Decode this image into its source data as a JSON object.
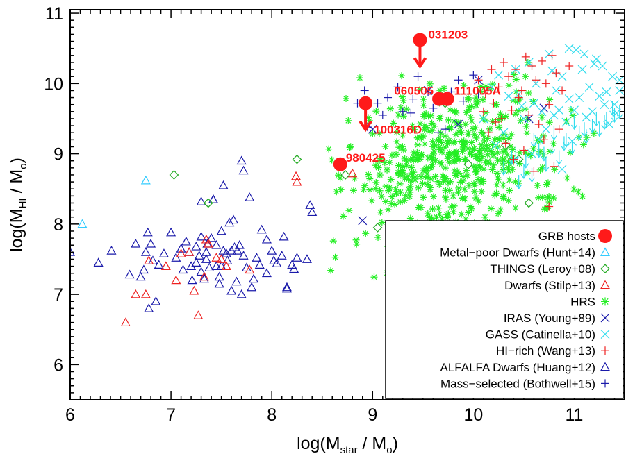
{
  "chart_data": {
    "type": "scatter",
    "xlabel": {
      "prefix": "log(M",
      "sub": "star",
      "suffix": " / M",
      "sub2": "o",
      "end": ")"
    },
    "ylabel": {
      "prefix": "log(M",
      "sub": "HI",
      "suffix": " / M",
      "sub2": "o",
      "end": ")"
    },
    "xlim": [
      6,
      11.5
    ],
    "ylim": [
      5.5,
      11.05
    ],
    "xticks": [
      "6",
      "7",
      "8",
      "9",
      "10",
      "11"
    ],
    "yticks": [
      "6",
      "7",
      "8",
      "9",
      "10",
      "11"
    ],
    "legend": {
      "placement": "lower-right",
      "entries": [
        {
          "label": "GRB hosts",
          "marker": "disk",
          "color": "#ff1a1a"
        },
        {
          "label": "Metal−poor Dwarfs (Hunt+14)",
          "marker": "triangle",
          "color": "#33ccff"
        },
        {
          "label": "THINGS (Leroy+08)",
          "marker": "diamond",
          "color": "#22aa22"
        },
        {
          "label": "Dwarfs (Stilp+13)",
          "marker": "triangle",
          "color": "#ee2222"
        },
        {
          "label": "HRS",
          "marker": "asterisk",
          "color": "#22ee22"
        },
        {
          "label": "IRAS (Young+89)",
          "marker": "x",
          "color": "#1a1aaa"
        },
        {
          "label": "GASS (Catinella+10)",
          "marker": "x",
          "color": "#33ddee"
        },
        {
          "label": "HI−rich (Wang+13)",
          "marker": "plus",
          "color": "#ee2222"
        },
        {
          "label": "ALFALFA Dwarfs (Huang+12)",
          "marker": "triangle",
          "color": "#1a1aaa"
        },
        {
          "label": "Mass−selected (Bothwell+15)",
          "marker": "plus",
          "color": "#1a1aaa"
        }
      ]
    },
    "grb_hosts": [
      {
        "name": "980425",
        "x": 8.68,
        "y": 8.85,
        "upper_limit": false
      },
      {
        "name": "100316D",
        "x": 8.93,
        "y": 9.72,
        "upper_limit": true
      },
      {
        "name": "060505",
        "x": 9.66,
        "y": 9.78,
        "upper_limit": false
      },
      {
        "name": "111005A",
        "x": 9.74,
        "y": 9.78,
        "upper_limit": false
      },
      {
        "name": "031203",
        "x": 9.47,
        "y": 10.62,
        "upper_limit": true
      }
    ],
    "series": [
      {
        "label_ref": 8,
        "marker": "triangle",
        "color": "#1a1aaa",
        "x": [
          6.0,
          6.28,
          6.41,
          6.59,
          6.65,
          6.7,
          6.73,
          6.75,
          6.77,
          6.8,
          6.82,
          6.88,
          6.93,
          7.05,
          7.12,
          7.18,
          7.21,
          7.25,
          7.28,
          7.3,
          7.33,
          7.35,
          7.38,
          7.4,
          7.42,
          7.45,
          7.48,
          7.5,
          7.52,
          7.56,
          7.6,
          7.62,
          7.65,
          7.66,
          7.7,
          7.72,
          7.75,
          7.78,
          7.8,
          7.85,
          7.88,
          7.9,
          7.95,
          8.0,
          8.02,
          8.05,
          8.1,
          8.12,
          8.15,
          8.2,
          8.25,
          8.35,
          8.38,
          8.4,
          7.1,
          7.3,
          7.36,
          7.45,
          7.55,
          7.63,
          7.7,
          7.6,
          7.25,
          7.35,
          7.48,
          7.52,
          7.68,
          7.82,
          7.95,
          7.2,
          7.42,
          7.3,
          7.5,
          7.58,
          8.22,
          8.15,
          7.0,
          6.85,
          6.78,
          7.15,
          7.72
        ],
        "y": [
          7.6,
          7.45,
          7.62,
          7.28,
          7.72,
          7.25,
          7.35,
          7.6,
          7.88,
          7.72,
          7.48,
          7.42,
          7.58,
          7.52,
          7.35,
          7.6,
          7.2,
          7.68,
          7.55,
          8.32,
          7.22,
          7.5,
          7.38,
          7.8,
          8.35,
          7.7,
          7.25,
          7.4,
          7.62,
          7.48,
          7.05,
          8.06,
          7.18,
          7.62,
          8.9,
          8.76,
          7.38,
          8.38,
          7.1,
          7.52,
          7.42,
          7.92,
          7.78,
          7.62,
          7.48,
          7.44,
          7.55,
          7.82,
          7.1,
          7.42,
          7.52,
          7.5,
          8.27,
          8.17,
          7.65,
          7.32,
          7.72,
          7.4,
          7.58,
          7.67,
          7.0,
          7.62,
          7.45,
          7.6,
          7.15,
          8.55,
          7.7,
          7.22,
          7.3,
          7.4,
          8.35,
          7.82,
          7.9,
          8.02,
          7.36,
          7.08,
          7.88,
          6.9,
          6.8,
          7.75,
          7.55
        ]
      },
      {
        "label_ref": 3,
        "marker": "triangle",
        "color": "#ee2222",
        "x": [
          6.55,
          6.65,
          6.75,
          6.78,
          6.95,
          7.05,
          7.1,
          7.18,
          7.23,
          7.27,
          7.33,
          7.35,
          7.37,
          7.45,
          7.5,
          7.55,
          7.78,
          8.24,
          8.25,
          8.8
        ],
        "y": [
          6.6,
          7.0,
          7.0,
          7.48,
          7.4,
          7.2,
          7.58,
          7.6,
          7.05,
          6.7,
          7.25,
          7.78,
          7.72,
          7.52,
          7.5,
          7.4,
          7.35,
          8.68,
          8.6,
          8.72
        ]
      },
      {
        "label_ref": 1,
        "marker": "triangle",
        "color": "#33ccff",
        "x": [
          6.12,
          6.75
        ],
        "y": [
          8.0,
          8.62
        ]
      },
      {
        "label_ref": 2,
        "marker": "diamond",
        "color": "#22aa22",
        "x": [
          7.03,
          7.37,
          8.25,
          8.73,
          9.05,
          9.72,
          9.95,
          10.32,
          10.45,
          10.55
        ],
        "y": [
          8.7,
          8.3,
          8.92,
          8.7,
          7.95,
          9.72,
          8.85,
          9.12,
          8.92,
          8.3
        ]
      },
      {
        "label_ref": 8,
        "marker": "plus",
        "color": "#1a1aaa",
        "x": [
          8.85,
          8.92,
          9.05,
          9.15,
          9.25,
          9.3,
          9.38,
          9.45,
          9.55,
          9.6,
          9.72,
          9.78,
          9.85,
          9.9,
          10.0,
          10.05,
          8.95,
          9.1,
          9.4,
          9.65
        ],
        "y": [
          9.72,
          9.9,
          9.72,
          9.8,
          9.95,
          9.6,
          9.58,
          10.1,
          9.88,
          9.65,
          9.35,
          9.88,
          10.05,
          9.75,
          10.12,
          9.85,
          9.38,
          9.55,
          9.78,
          9.3
        ]
      },
      {
        "label_ref": 6,
        "marker": "x",
        "color": "#1a1aaa",
        "x": [
          8.9,
          9.0,
          9.55,
          9.85,
          10.05,
          10.55,
          10.7
        ],
        "y": [
          8.05,
          9.35,
          9.9,
          9.42,
          10.05,
          9.5,
          9.65
        ]
      },
      {
        "label_ref": 7,
        "marker": "x",
        "color": "#33ddee",
        "x": [
          10.1,
          10.18,
          10.25,
          10.35,
          10.42,
          10.48,
          10.55,
          10.62,
          10.68,
          10.75,
          10.82,
          10.88,
          10.95,
          11.02,
          11.08,
          11.15,
          11.22,
          11.3,
          11.38,
          11.45,
          10.3,
          10.5,
          10.65,
          10.8,
          10.92,
          11.05,
          11.18,
          11.28,
          11.4,
          10.4,
          10.58,
          10.72,
          10.85,
          10.98,
          11.12,
          11.25,
          11.35,
          11.45,
          10.95,
          11.1,
          11.2,
          11.32,
          11.42,
          10.6,
          10.78,
          11.0,
          10.22,
          10.45,
          10.88
        ],
        "y": [
          9.5,
          9.95,
          10.12,
          9.82,
          10.2,
          9.68,
          10.3,
          10.0,
          9.6,
          10.42,
          9.9,
          10.1,
          9.78,
          10.48,
          10.2,
          9.95,
          10.35,
          9.7,
          10.1,
          9.9,
          9.3,
          9.5,
          9.2,
          9.55,
          9.45,
          9.8,
          9.6,
          10.25,
          9.7,
          8.9,
          9.0,
          9.35,
          9.62,
          9.18,
          9.52,
          9.82,
          9.42,
          10.05,
          10.5,
          10.42,
          10.28,
          9.88,
          9.58,
          9.72,
          10.18,
          9.62,
          9.12,
          9.85,
          8.78
        ]
      },
      {
        "label_ref": 7,
        "marker": "arrow",
        "color": "#33ddee",
        "x": [
          10.3,
          10.38,
          10.45,
          10.52,
          10.58,
          10.65,
          10.72,
          10.78,
          10.85,
          10.92,
          10.98,
          11.05,
          11.12,
          11.18,
          11.25,
          11.32,
          11.4,
          11.45,
          10.42,
          10.6,
          10.8,
          11.0,
          11.22,
          11.38,
          10.5,
          10.7,
          10.9,
          11.1,
          11.3
        ],
        "y": [
          8.8,
          8.95,
          8.6,
          8.9,
          8.7,
          9.05,
          8.85,
          9.1,
          8.95,
          9.2,
          9.1,
          9.3,
          9.25,
          9.4,
          9.35,
          9.5,
          9.55,
          9.6,
          9.0,
          9.2,
          9.3,
          9.45,
          9.5,
          9.65,
          8.75,
          9.0,
          9.15,
          9.35,
          9.45
        ]
      },
      {
        "label_ref": 7,
        "marker": "plus",
        "color": "#ee2222",
        "x": [
          10.05,
          10.12,
          10.18,
          10.25,
          10.3,
          10.35,
          10.42,
          10.48,
          10.52,
          10.58,
          10.62,
          10.68,
          10.72,
          10.78,
          10.82,
          10.88,
          10.95,
          10.1,
          10.2,
          10.28,
          10.38,
          10.45,
          10.55,
          10.65,
          10.75,
          10.85,
          10.15,
          10.32,
          10.5,
          10.7,
          10.4,
          10.6,
          10.8,
          10.22,
          10.48,
          10.75
        ],
        "y": [
          10.05,
          9.85,
          10.2,
          9.95,
          10.3,
          10.1,
          10.2,
          9.9,
          10.38,
          10.25,
          10.05,
          10.32,
          10.0,
          10.4,
          10.15,
          9.9,
          10.25,
          9.6,
          9.72,
          9.5,
          9.62,
          9.8,
          9.55,
          9.42,
          9.7,
          9.35,
          9.3,
          9.15,
          9.05,
          9.2,
          8.92,
          8.75,
          8.82,
          9.45,
          9.9,
          8.25
        ]
      }
    ],
    "hrs_cloud": {
      "label_ref": 4,
      "marker": "asterisk",
      "color": "#22ee22",
      "center": [
        9.75,
        8.85
      ],
      "spread": [
        0.55,
        0.55
      ],
      "slope": 0.25,
      "count": 520,
      "x_range": [
        8.5,
        11.2
      ],
      "y_range": [
        7.2,
        10.35
      ]
    }
  }
}
